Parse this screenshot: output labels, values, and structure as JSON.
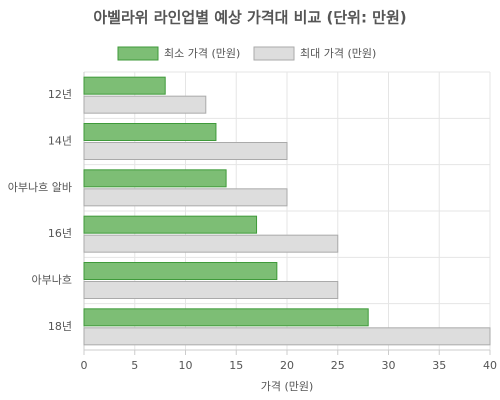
{
  "chart_data": {
    "type": "bar",
    "orientation": "horizontal",
    "title": "아벨라위 라인업별 예상 가격대 비교 (단위: 만원)",
    "categories": [
      "12년",
      "14년",
      "아부나흐 알바",
      "16년",
      "아부나흐",
      "18년"
    ],
    "series": [
      {
        "name": "최소 가격 (만원)",
        "color": "#7dbe75",
        "values": [
          8,
          13,
          14,
          17,
          19,
          28
        ]
      },
      {
        "name": "최대 가격 (만원)",
        "color": "#dddddd",
        "values": [
          12,
          20,
          20,
          25,
          25,
          40
        ]
      }
    ],
    "xlabel": "가격 (만원)",
    "xlim": [
      0,
      40
    ],
    "xticks": [
      0,
      5,
      10,
      15,
      20,
      25,
      30,
      35,
      40
    ],
    "grid": true,
    "legend": "top"
  }
}
